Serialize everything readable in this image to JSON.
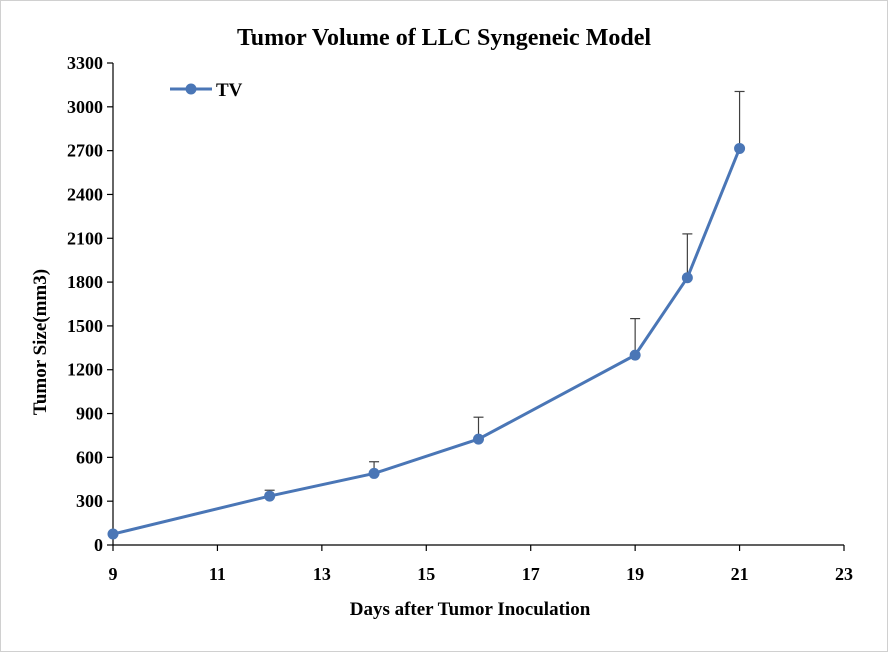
{
  "chart_data": {
    "type": "line",
    "title": "Tumor Volume of LLC Syngeneic Model",
    "xlabel": "Days after Tumor Inoculation",
    "ylabel": "Tumor Size(mm3)",
    "xlim": [
      9,
      23
    ],
    "ylim": [
      0,
      3300
    ],
    "x_ticks": [
      "9",
      "11",
      "13",
      "15",
      "17",
      "19",
      "21",
      "23"
    ],
    "y_ticks": [
      "0",
      "300",
      "600",
      "900",
      "1200",
      "1500",
      "1800",
      "2100",
      "2400",
      "2700",
      "3000",
      "3300"
    ],
    "grid": false,
    "legend": {
      "position": "top-left",
      "entries": [
        "TV"
      ]
    },
    "series": [
      {
        "name": "TV",
        "color": "#4a76b6",
        "x": [
          9,
          12,
          14,
          16,
          19,
          20,
          21
        ],
        "y": [
          75,
          335,
          490,
          725,
          1300,
          1830,
          2715
        ],
        "error_upper": [
          0,
          40,
          80,
          150,
          250,
          300,
          390
        ]
      }
    ]
  }
}
